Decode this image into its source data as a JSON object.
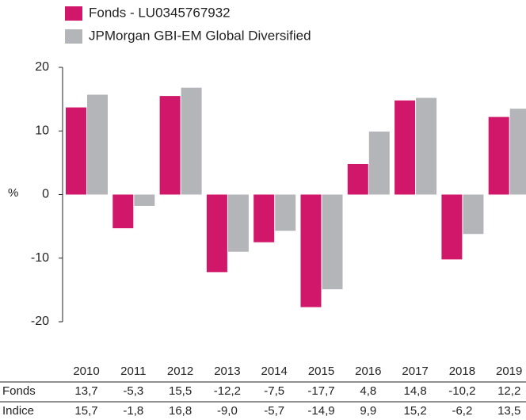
{
  "chart_data": {
    "type": "bar",
    "categories": [
      "2010",
      "2011",
      "2012",
      "2013",
      "2014",
      "2015",
      "2016",
      "2017",
      "2018",
      "2019"
    ],
    "series": [
      {
        "name": "Fonds - LU0345767932",
        "color": "#d0176a",
        "values": [
          13.7,
          -5.3,
          15.5,
          -12.2,
          -7.5,
          -17.7,
          4.8,
          14.8,
          -10.2,
          12.2
        ],
        "value_labels": [
          "13,7",
          "-5,3",
          "15,5",
          "-12,2",
          "-7,5",
          "-17,7",
          "4,8",
          "14,8",
          "-10,2",
          "12,2"
        ]
      },
      {
        "name": "JPMorgan GBI-EM Global Diversified",
        "color": "#b4b5b8",
        "values": [
          15.7,
          -1.8,
          16.8,
          -9.0,
          -5.7,
          -14.9,
          9.9,
          15.2,
          -6.2,
          13.5
        ],
        "value_labels": [
          "15,7",
          "-1,8",
          "16,8",
          "-9,0",
          "-5,7",
          "-14,9",
          "9,9",
          "15,2",
          "-6,2",
          "13,5"
        ]
      }
    ],
    "table_row_labels": [
      "Fonds",
      "Indice"
    ],
    "y_label": "%",
    "ylim": [
      -20,
      20
    ],
    "yticks": [
      -20,
      -10,
      0,
      10,
      20
    ],
    "grid": false
  }
}
